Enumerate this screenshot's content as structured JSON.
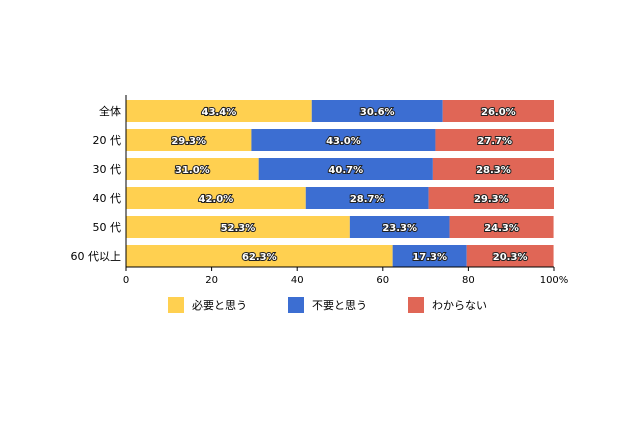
{
  "chart_data": {
    "type": "bar",
    "orientation": "horizontal",
    "stacked": true,
    "categories": [
      "全体",
      "20 代",
      "30 代",
      "40 代",
      "50 代",
      "60 代以上"
    ],
    "series": [
      {
        "name": "必要と思う",
        "color": "#FFD050",
        "values": [
          43.4,
          29.3,
          31.0,
          42.0,
          52.3,
          62.3
        ],
        "labels": [
          "43.4%",
          "29.3%",
          "31.0%",
          "42.0%",
          "52.3%",
          "62.3%"
        ]
      },
      {
        "name": "不要と思う",
        "color": "#3C6ED2",
        "values": [
          30.6,
          43.0,
          40.7,
          28.7,
          23.3,
          17.3
        ],
        "labels": [
          "30.6%",
          "43.0%",
          "40.7%",
          "28.7%",
          "23.3%",
          "17.3%"
        ]
      },
      {
        "name": "わからない",
        "color": "#E06656",
        "values": [
          26.0,
          27.7,
          28.3,
          29.3,
          24.3,
          20.3
        ],
        "labels": [
          "26.0%",
          "27.7%",
          "28.3%",
          "29.3%",
          "24.3%",
          "20.3%"
        ]
      }
    ],
    "xlim": [
      0,
      100
    ],
    "ticks": [
      0,
      20,
      40,
      60,
      80,
      100
    ],
    "tick_labels": [
      "0",
      "20",
      "40",
      "60",
      "80",
      "100%"
    ],
    "legend_position": "bottom",
    "grid": false
  }
}
